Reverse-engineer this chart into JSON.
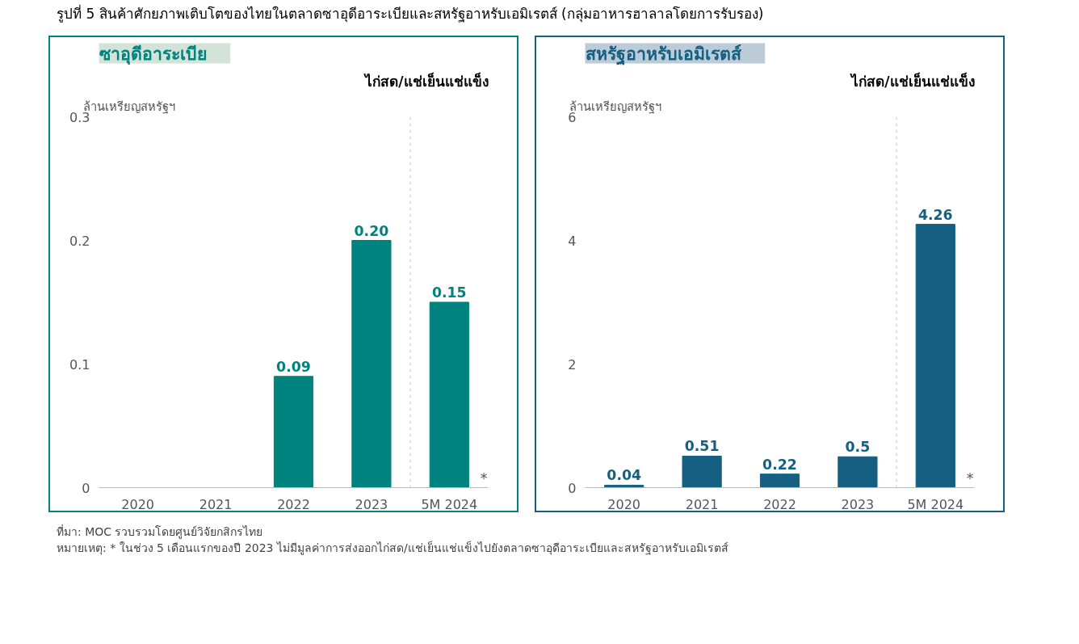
{
  "chart_data": [
    {
      "type": "bar",
      "title": "ซาอุดีอาระเบีย",
      "subtitle": "ไก่สด/แช่เย็นแช่แข็ง",
      "ylabel": "ล้านเหรียญสหรัฐฯ",
      "categories": [
        "2020",
        "2021",
        "2022",
        "2023",
        "5M 2024"
      ],
      "values": [
        null,
        null,
        0.09,
        0.2,
        0.15
      ],
      "value_labels": [
        null,
        null,
        "0.09",
        "0.20",
        "0.15"
      ],
      "color": "#00827f",
      "ylim": [
        0,
        0.3
      ],
      "yticks": [
        0,
        0.1,
        0.2,
        0.3
      ],
      "grid": false,
      "annotations": [
        "รูปที่ 5 สินค้าศักยภาพเติบโตของไทยในตลาดซาอุดีอาระเบียและสหรัฐอาหรับเอมิเรตส์ (กลุ่มอาหารฮาลาลโดยการรับรอง)",
        {
          "text": "*",
          "x": "5M 2024",
          "y": 0
        },
        "ที่มา: MOC รวบรวมโดยศูนย์วิจัยกสิกรไทย",
        "หมายเหตุ: * ในช่วง 5 เดือนแรกของปี 2023 ไม่มีมูลค่าการส่งออกไก่สด/แช่เย็นแช่แข็งไปยังตลาดซาอุดีอาระเบียและสหรัฐอาหรับเอมิเรตส์"
      ]
    },
    {
      "type": "bar",
      "title": "สหรัฐอาหรับเอมิเรตส์",
      "subtitle": "ไก่สด/แช่เย็นแช่แข็ง",
      "ylabel": "ล้านเหรียญสหรัฐฯ",
      "categories": [
        "2020",
        "2021",
        "2022",
        "2023",
        "5M 2024"
      ],
      "values": [
        0.04,
        0.51,
        0.22,
        0.5,
        4.26
      ],
      "data_labels": true,
      "color": "#156082",
      "ylim": [
        0,
        6
      ],
      "yticks": [
        0,
        2,
        4,
        6
      ],
      "grid": false,
      "annotations": [
        {
          "text": "*",
          "x": "5M 2024",
          "y": 0
        }
      ]
    }
  ]
}
